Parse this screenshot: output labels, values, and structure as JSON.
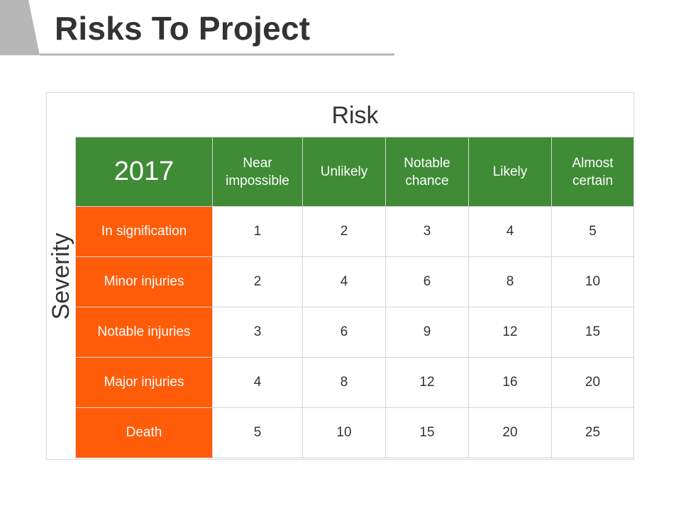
{
  "page": {
    "title": "Risks To Project"
  },
  "matrix": {
    "risk_label": "Risk",
    "severity_label": "Severity",
    "year": "2017",
    "columns": [
      "Near impossible",
      "Unlikely",
      "Notable chance",
      "Likely",
      "Almost certain"
    ],
    "rows": [
      {
        "label": "In signification",
        "values": [
          "1",
          "2",
          "3",
          "4",
          "5"
        ]
      },
      {
        "label": "Minor injuries",
        "values": [
          "2",
          "4",
          "6",
          "8",
          "10"
        ]
      },
      {
        "label": "Notable injuries",
        "values": [
          "3",
          "6",
          "9",
          "12",
          "15"
        ]
      },
      {
        "label": "Major injuries",
        "values": [
          "4",
          "8",
          "12",
          "16",
          "20"
        ]
      },
      {
        "label": "Death",
        "values": [
          "5",
          "10",
          "15",
          "20",
          "25"
        ]
      }
    ]
  },
  "colors": {
    "header_green": "#3f8b36",
    "row_orange": "#ff5c0a",
    "title_tab_gray": "#bfbfbf",
    "title_text": "#333333"
  }
}
